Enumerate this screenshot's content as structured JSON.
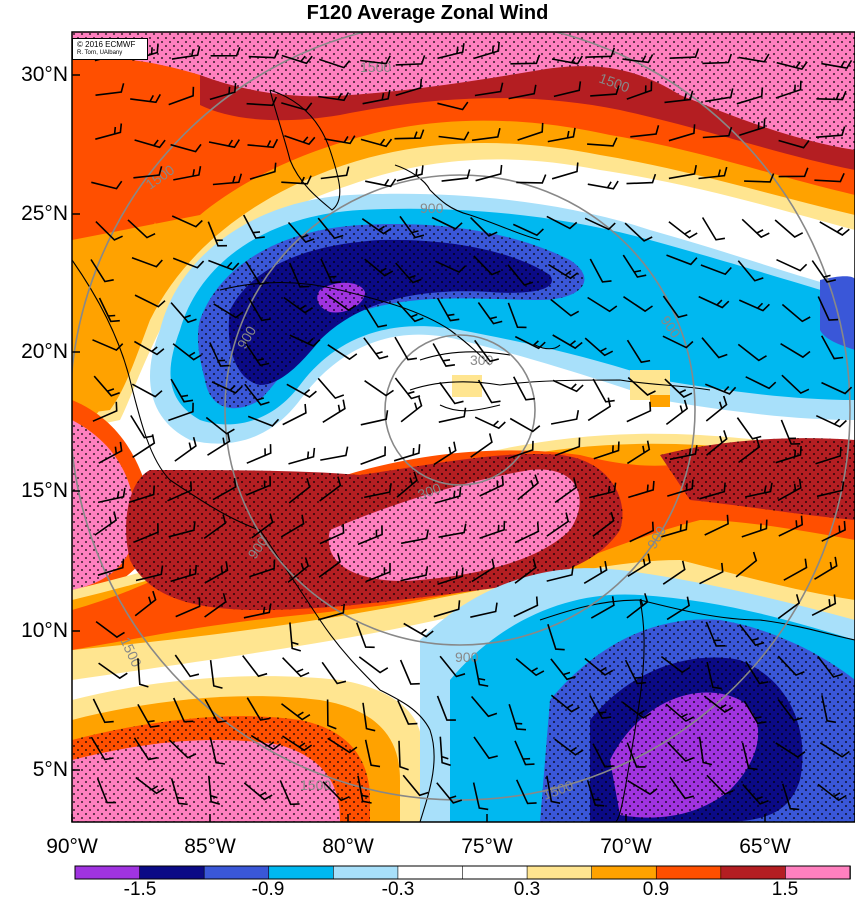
{
  "title": "F120 Average Zonal Wind",
  "credit": {
    "line1": "© 2016 ECMWF",
    "line2": "R. Torn, UAlbany"
  },
  "lat_labels": [
    "30°N",
    "25°N",
    "20°N",
    "15°N",
    "10°N",
    "5°N"
  ],
  "lon_labels": [
    "90°W",
    "85°W",
    "80°W",
    "75°W",
    "70°W",
    "65°W"
  ],
  "colorbar": {
    "colors": [
      "#a033e0",
      "#0b0a86",
      "#3a57d8",
      "#00b8f0",
      "#a8e0fa",
      "#ffffff",
      "#ffffff",
      "#ffe590",
      "#ffa200",
      "#ff4f00",
      "#b41e22",
      "#ff80bf"
    ],
    "labels": [
      "-1.5",
      "-0.9",
      "-0.3",
      "0.3",
      "0.9",
      "1.5"
    ]
  },
  "contour_labels": [
    "1500",
    "1500",
    "1500",
    "900",
    "900",
    "900",
    "900",
    "900",
    "300",
    "300",
    "1500",
    "1500",
    "1500",
    "900"
  ]
}
